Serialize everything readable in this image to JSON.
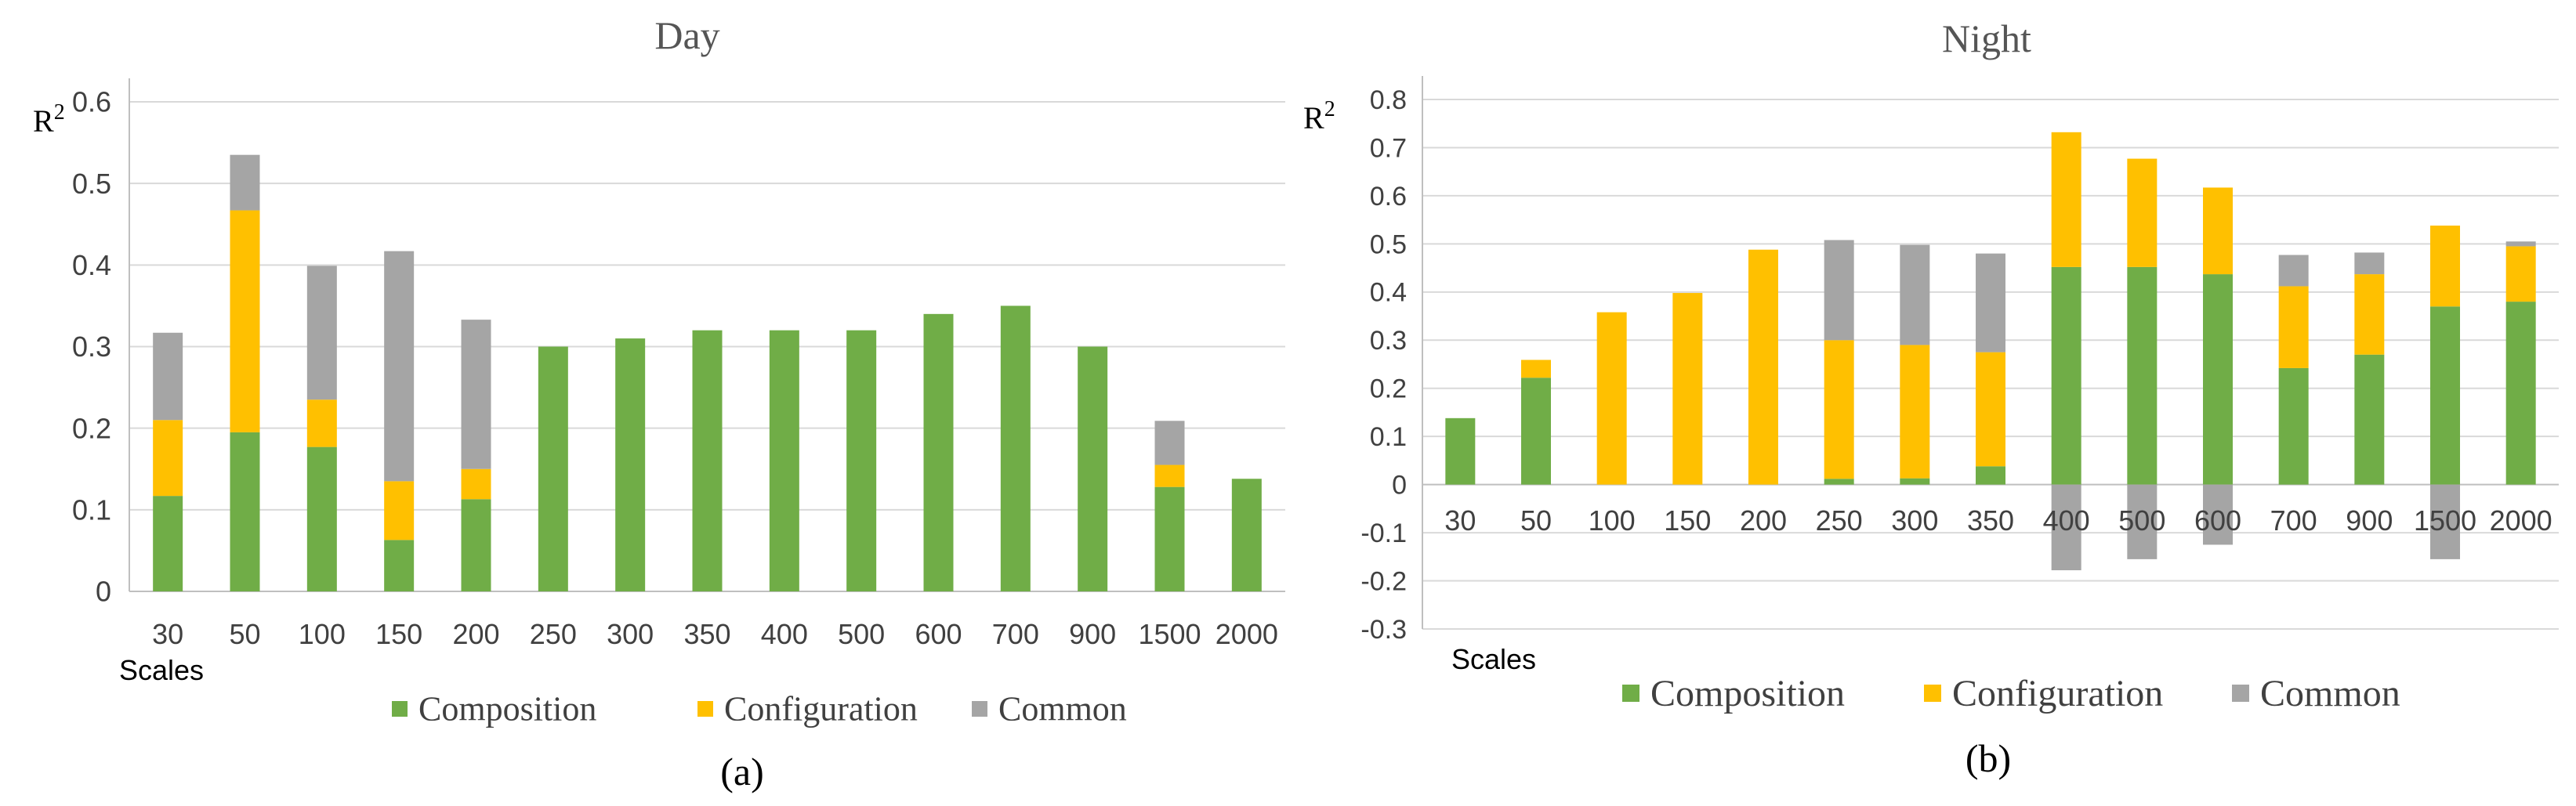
{
  "colors": {
    "composition": "#70ad47",
    "configuration": "#ffc000",
    "common": "#a5a5a5",
    "axis": "#bfbfbf",
    "grid": "#d9d9d9",
    "text": "#404040"
  },
  "chart_data": [
    {
      "type": "bar",
      "stacked": true,
      "title": "Day",
      "ylabel": "R",
      "ylabel_sup": "2",
      "xlabel": "Scales",
      "caption": "(a)",
      "categories": [
        "30",
        "50",
        "100",
        "150",
        "200",
        "250",
        "300",
        "350",
        "400",
        "500",
        "600",
        "700",
        "900",
        "1500",
        "2000"
      ],
      "series": [
        {
          "name": "Composition",
          "values": [
            0.117,
            0.195,
            0.177,
            0.063,
            0.113,
            0.3,
            0.31,
            0.32,
            0.32,
            0.32,
            0.34,
            0.35,
            0.3,
            0.128,
            0.138
          ]
        },
        {
          "name": "Configuration",
          "values": [
            0.093,
            0.272,
            0.058,
            0.072,
            0.037,
            0,
            0,
            0,
            0,
            0,
            0,
            0,
            0,
            0.027,
            0
          ]
        },
        {
          "name": "Common",
          "values": [
            0.107,
            0.068,
            0.164,
            0.282,
            0.183,
            0,
            0,
            0,
            0,
            0,
            0,
            0,
            0,
            0.054,
            0
          ]
        }
      ],
      "ylim": [
        0,
        0.6
      ],
      "yticks": [
        "0",
        "0.1",
        "0.2",
        "0.3",
        "0.4",
        "0.5",
        "0.6"
      ],
      "legend": [
        "Composition",
        "Configuration",
        "Common"
      ]
    },
    {
      "type": "bar",
      "stacked": true,
      "title": "Night",
      "ylabel": "R",
      "ylabel_sup": "2",
      "xlabel": "Scales",
      "caption": "(b)",
      "categories": [
        "30",
        "50",
        "100",
        "150",
        "200",
        "250",
        "300",
        "350",
        "400",
        "500",
        "600",
        "700",
        "900",
        "1500",
        "2000"
      ],
      "series": [
        {
          "name": "Composition",
          "values": [
            0.138,
            0.222,
            0,
            0,
            0,
            0.012,
            0.013,
            0.038,
            0.452,
            0.452,
            0.437,
            0.242,
            0.27,
            0.37,
            0.38
          ]
        },
        {
          "name": "Configuration",
          "values": [
            0,
            0.037,
            0.358,
            0.398,
            0.488,
            0.288,
            0.277,
            0.237,
            0.28,
            0.225,
            0.18,
            0.17,
            0.167,
            0.168,
            0.115
          ]
        },
        {
          "name": "Common",
          "values": [
            0,
            0,
            0,
            0,
            0,
            0.208,
            0.208,
            0.205,
            -0.178,
            -0.155,
            -0.125,
            0.065,
            0.045,
            -0.155,
            0.01
          ]
        }
      ],
      "ylim": [
        -0.3,
        0.8
      ],
      "yticks": [
        "-0.3",
        "-0.2",
        "-0.1",
        "0",
        "0.1",
        "0.2",
        "0.3",
        "0.4",
        "0.5",
        "0.6",
        "0.7",
        "0.8"
      ],
      "legend": [
        "Composition",
        "Configuration",
        "Common"
      ]
    }
  ]
}
